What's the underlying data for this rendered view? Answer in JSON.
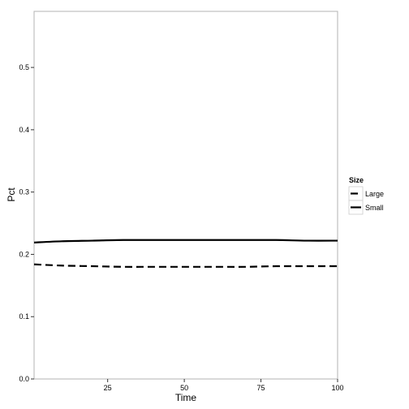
{
  "chart_data": {
    "type": "line",
    "xlabel": "Time",
    "ylabel": "Pct",
    "xlim": [
      1,
      100
    ],
    "ylim": [
      0,
      0.59
    ],
    "x_ticks": [
      25,
      50,
      75,
      100
    ],
    "x_tick_labels": [
      "25",
      "50",
      "75",
      "100"
    ],
    "y_ticks": [
      0,
      0.1,
      0.2,
      0.3,
      0.4,
      0.5
    ],
    "y_tick_labels": [
      "0.0",
      "0.1",
      "0.2",
      "0.3",
      "0.4",
      "0.5"
    ],
    "grid": false,
    "legend": {
      "title": "Size",
      "position": "right"
    },
    "x": [
      1,
      10,
      20,
      30,
      40,
      50,
      60,
      70,
      80,
      90,
      100
    ],
    "series": [
      {
        "name": "Large",
        "linestyle": "dashed",
        "color": "#000000",
        "values": [
          0.184,
          0.182,
          0.181,
          0.18,
          0.18,
          0.18,
          0.18,
          0.18,
          0.181,
          0.181,
          0.181
        ]
      },
      {
        "name": "Small",
        "linestyle": "solid",
        "color": "#000000",
        "values": [
          0.219,
          0.221,
          0.222,
          0.223,
          0.223,
          0.223,
          0.223,
          0.223,
          0.223,
          0.222,
          0.222
        ]
      }
    ]
  }
}
